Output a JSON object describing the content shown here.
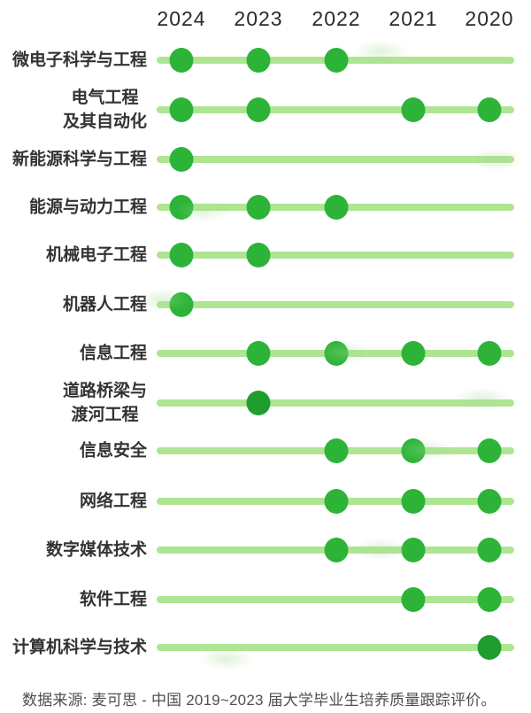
{
  "colors": {
    "dot": "#2db438",
    "dot_dark": "#1f9d2f",
    "line": "#aee593",
    "year_text": "#2a2a2a",
    "label_text": "#333333",
    "footer_text": "#4f4f4f",
    "background": "#ffffff"
  },
  "footer": {
    "text": "数据来源: 麦可思 - 中国 2019~2023 届大学毕业生培养质量跟踪评价。"
  },
  "chart_data": {
    "type": "scatter",
    "subtype": "dot-presence-timeline",
    "title": "",
    "xlabel": "",
    "ylabel": "",
    "legend": "none",
    "grid": false,
    "categories": [
      "2024",
      "2023",
      "2022",
      "2021",
      "2020"
    ],
    "series": [
      {
        "label": "微电子科学与工程",
        "label_lines": [
          "微电子科学与工程"
        ],
        "years": [
          "2024",
          "2023",
          "2022"
        ]
      },
      {
        "label": "电气工程及其自动化",
        "label_lines": [
          "电气工程",
          "及其自动化"
        ],
        "years": [
          "2024",
          "2023",
          "2021",
          "2020"
        ]
      },
      {
        "label": "新能源科学与工程",
        "label_lines": [
          "新能源科学与工程"
        ],
        "years": [
          "2024"
        ]
      },
      {
        "label": "能源与动力工程",
        "label_lines": [
          "能源与动力工程"
        ],
        "years": [
          "2024",
          "2023",
          "2022"
        ]
      },
      {
        "label": "机械电子工程",
        "label_lines": [
          "机械电子工程"
        ],
        "years": [
          "2024",
          "2023"
        ]
      },
      {
        "label": "机器人工程",
        "label_lines": [
          "机器人工程"
        ],
        "years": [
          "2024"
        ]
      },
      {
        "label": "信息工程",
        "label_lines": [
          "信息工程"
        ],
        "years": [
          "2023",
          "2022",
          "2021",
          "2020"
        ]
      },
      {
        "label": "道路桥梁与渡河工程",
        "label_lines": [
          "道路桥梁与",
          "渡河工程"
        ],
        "years": [
          "2023"
        ],
        "dark_years": [
          "2023"
        ]
      },
      {
        "label": "信息安全",
        "label_lines": [
          "信息安全"
        ],
        "years": [
          "2022",
          "2021",
          "2020"
        ]
      },
      {
        "label": "网络工程",
        "label_lines": [
          "网络工程"
        ],
        "years": [
          "2022",
          "2021",
          "2020"
        ]
      },
      {
        "label": "数字媒体技术",
        "label_lines": [
          "数字媒体技术"
        ],
        "years": [
          "2022",
          "2021",
          "2020"
        ]
      },
      {
        "label": "软件工程",
        "label_lines": [
          "软件工程"
        ],
        "years": [
          "2021",
          "2020"
        ]
      },
      {
        "label": "计算机科学与技术",
        "label_lines": [
          "计算机科学与技术"
        ],
        "years": [
          "2020"
        ],
        "dark_years": [
          "2020"
        ]
      }
    ]
  }
}
